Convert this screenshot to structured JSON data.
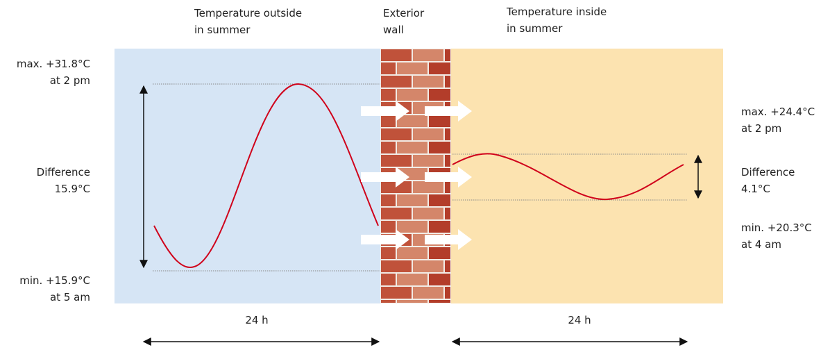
{
  "header": {
    "outside": [
      "Temperature outside",
      "in summer"
    ],
    "wall": [
      "Exterior",
      "wall"
    ],
    "inside": [
      "Temperature inside",
      "in summer"
    ]
  },
  "outside_labels": {
    "max": [
      "max. +31.8°C",
      "at 2 pm"
    ],
    "difference": [
      "Difference",
      "15.9°C"
    ],
    "min": [
      "min. +15.9°C",
      "at 5 am"
    ]
  },
  "inside_labels": {
    "max": [
      "max. +24.4°C",
      "at 2 pm"
    ],
    "difference": [
      "Difference",
      "4.1°C"
    ],
    "min": [
      "min. +20.3°C",
      "at 4 am"
    ]
  },
  "durations": [
    "24 h",
    "24 h"
  ]
}
